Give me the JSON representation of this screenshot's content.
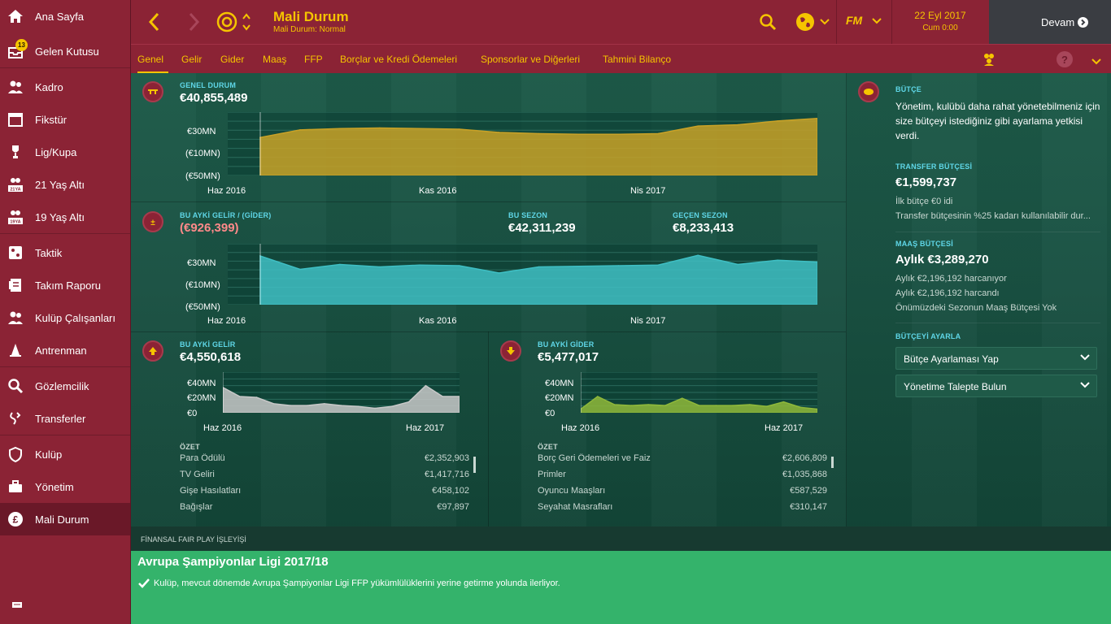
{
  "sidebar": {
    "items": [
      {
        "label": "Ana Sayfa",
        "icon": "home-icon"
      },
      {
        "label": "Gelen Kutusu",
        "icon": "inbox-icon",
        "badge": "13"
      },
      {
        "label": "Kadro",
        "icon": "squad-icon"
      },
      {
        "label": "Fikstür",
        "icon": "calendar-icon"
      },
      {
        "label": "Lig/Kupa",
        "icon": "trophy-icon"
      },
      {
        "label": "21 Yaş Altı",
        "icon": "u21-icon",
        "icon_text": "21YA"
      },
      {
        "label": "19 Yaş Altı",
        "icon": "u19-icon",
        "icon_text": "19YA"
      },
      {
        "label": "Taktik",
        "icon": "tactics-icon"
      },
      {
        "label": "Takım Raporu",
        "icon": "report-icon"
      },
      {
        "label": "Kulüp Çalışanları",
        "icon": "staff-icon"
      },
      {
        "label": "Antrenman",
        "icon": "training-icon"
      },
      {
        "label": "Gözlemcilik",
        "icon": "scouting-icon"
      },
      {
        "label": "Transferler",
        "icon": "transfers-icon"
      },
      {
        "label": "Kulüp",
        "icon": "club-icon"
      },
      {
        "label": "Yönetim",
        "icon": "board-icon"
      },
      {
        "label": "Mali Durum",
        "icon": "finances-icon",
        "active": true
      }
    ]
  },
  "header": {
    "title": "Mali Durum",
    "subtitle": "Mali Durum: Normal",
    "date": "22 Eyl 2017",
    "time": "Cum 0:00",
    "continue_label": "Devam",
    "fm_logo": "FM"
  },
  "tabs": [
    "Genel",
    "Gelir",
    "Gider",
    "Maaş",
    "FFP",
    "Borçlar ve Kredi Ödemeleri",
    "Sponsorlar ve Diğerleri",
    "Tahmini Bilanço"
  ],
  "overview": {
    "genel_durum_caption": "GENEL DURUM",
    "genel_durum_value": "€40,855,489",
    "monthly_caption": "BU AYKİ GELİR / (GİDER)",
    "monthly_value": "(€926,399)",
    "season_caption": "BU SEZON",
    "season_value": "€42,311,239",
    "last_season_caption": "GEÇEN SEZON",
    "last_season_value": "€8,233,413",
    "income_caption": "BU AYKİ GELİR",
    "income_value": "€4,550,618",
    "expense_caption": "BU AYKİ GİDER",
    "expense_value": "€5,477,017",
    "summary_caption": "ÖZET"
  },
  "chart_axes": {
    "balance_y": [
      "€30MN",
      "(€10MN)",
      "(€50MN)"
    ],
    "balance_x": [
      "Haz 2016",
      "Kas 2016",
      "Nis 2017"
    ],
    "small_y": [
      "€40MN",
      "€20MN",
      "€0"
    ],
    "small_x": [
      "Haz 2016",
      "Haz 2017"
    ]
  },
  "chart_data": [
    {
      "type": "area",
      "title": "GENEL DURUM",
      "color": "#c9a227",
      "ylim": [
        -50,
        50
      ],
      "x": [
        "Haz 2016",
        "",
        "",
        "",
        "",
        "Kas 2016",
        "",
        "",
        "",
        "",
        "Nis 2017",
        "",
        "",
        "",
        ""
      ],
      "values": [
        10,
        22,
        24,
        25,
        24,
        23,
        18,
        16,
        15,
        15,
        16,
        28,
        30,
        36,
        40
      ]
    },
    {
      "type": "area",
      "title": "BU AYKİ GELİR / (GİDER)",
      "color": "#3fbfc4",
      "ylim": [
        -50,
        50
      ],
      "x": [
        "Haz 2016",
        "",
        "",
        "",
        "",
        "Kas 2016",
        "",
        "",
        "",
        "",
        "Nis 2017",
        "",
        "",
        "",
        ""
      ],
      "values": [
        30,
        8,
        16,
        12,
        15,
        14,
        2,
        12,
        13,
        14,
        15,
        31,
        16,
        23,
        20
      ]
    },
    {
      "type": "area",
      "title": "BU AYKİ GELİR",
      "color": "#c8c8c8",
      "ylim": [
        0,
        45
      ],
      "x": [
        "Haz 2016",
        "",
        "",
        "",
        "",
        "",
        "",
        "",
        "",
        "",
        "",
        "",
        "Haz 2017",
        "",
        ""
      ],
      "values": [
        28,
        18,
        17,
        10,
        8,
        8,
        10,
        8,
        7,
        5,
        7,
        12,
        30,
        18,
        18
      ]
    },
    {
      "type": "area",
      "title": "BU AYKİ GİDER",
      "color": "#8fb83a",
      "ylim": [
        0,
        45
      ],
      "x": [
        "Haz 2016",
        "",
        "",
        "",
        "",
        "",
        "",
        "",
        "",
        "",
        "",
        "",
        "Haz 2017",
        "",
        ""
      ],
      "values": [
        4,
        18,
        9,
        8,
        9,
        8,
        16,
        8,
        8,
        8,
        9,
        7,
        12,
        6,
        4
      ]
    }
  ],
  "income_summary": [
    {
      "k": "Para Ödülü",
      "v": "€2,352,903"
    },
    {
      "k": "TV Geliri",
      "v": "€1,417,716"
    },
    {
      "k": "Gişe Hasılatları",
      "v": "€458,102"
    },
    {
      "k": "Bağışlar",
      "v": "€97,897"
    }
  ],
  "expense_summary": [
    {
      "k": "Borç Geri Ödemeleri ve Faiz",
      "v": "€2,606,809"
    },
    {
      "k": "Primler",
      "v": "€1,035,868"
    },
    {
      "k": "Oyuncu Maaşları",
      "v": "€587,529"
    },
    {
      "k": "Seyahat Masrafları",
      "v": "€310,147"
    }
  ],
  "budget": {
    "caption": "BÜTÇE",
    "text": "Yönetim, kulübü daha rahat yönetebilmeniz için size bütçeyi istediğiniz gibi ayarlama yetkisi verdi.",
    "transfer_caption": "TRANSFER BÜTÇESİ",
    "transfer_value": "€1,599,737",
    "transfer_line1": "İlk bütçe €0 idi",
    "transfer_line2": "Transfer bütçesinin %25 kadarı kullanılabilir dur...",
    "wage_caption": "MAAŞ BÜTÇESİ",
    "wage_value": "Aylık €3,289,270",
    "wage_line1": "Aylık €2,196,192 harcanıyor",
    "wage_line2": "Aylık €2,196,192 harcandı",
    "wage_line3": "Önümüzdeki Sezonun Maaş Bütçesi Yok",
    "adjust_caption": "BÜTÇEYİ AYARLA",
    "adjust_option1": "Bütçe Ayarlaması Yap",
    "adjust_option2": "Yönetime Talepte Bulun"
  },
  "ffp": {
    "header": "FİNANSAL FAIR PLAY İŞLEYİŞİ",
    "title": "Avrupa Şampiyonlar Ligi 2017/18",
    "status": "Kulüp, mevcut dönemde Avrupa Şampiyonlar Ligi FFP yükümlülüklerini yerine getirme yolunda ilerliyor."
  }
}
